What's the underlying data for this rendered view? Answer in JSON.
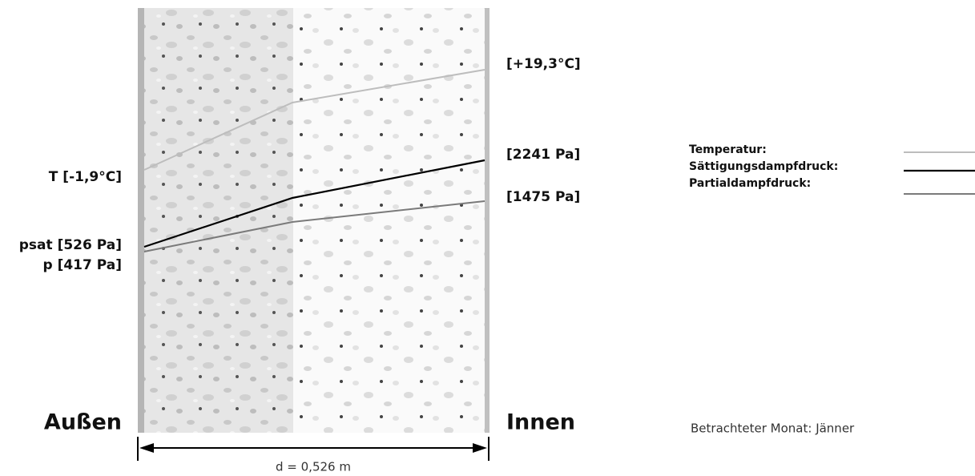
{
  "wall": {
    "outside_label": "Außen",
    "inside_label": "Innen",
    "thickness_label": "d = 0,526 m",
    "outside_values": [
      "T [-1,9°C]",
      "psat [526 Pa]",
      "p [417 Pa]"
    ],
    "inside_values": [
      "[+19,3°C]",
      "[2241 Pa]",
      "[1475 Pa]"
    ]
  },
  "legend": [
    "Temperatur:",
    "Sättigungsdampfdruck:",
    "Partialdampfdruck:"
  ],
  "month_note": "Betrachteter Monat: Jänner"
}
